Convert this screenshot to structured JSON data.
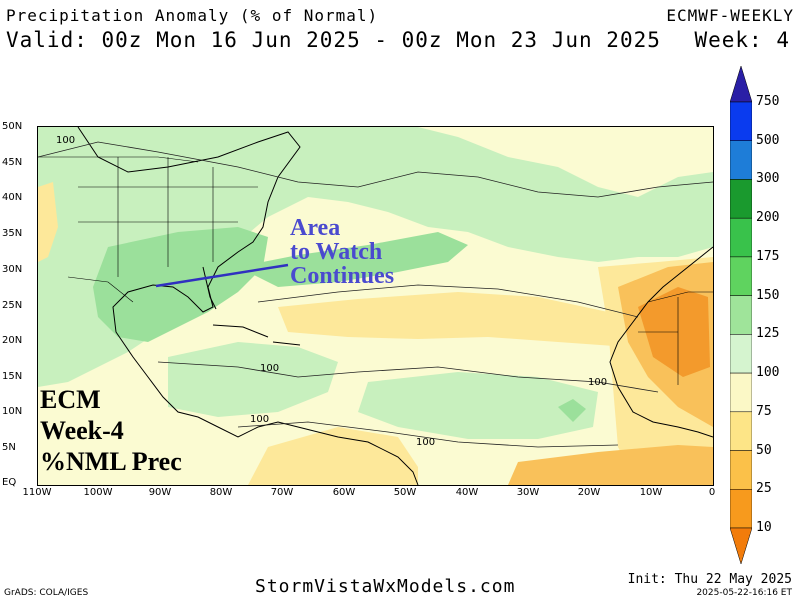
{
  "header": {
    "title": "Precipitation Anomaly (% of Normal)",
    "valid": "Valid: 00z Mon 16 Jun 2025 - 00z Mon 23 Jun 2025",
    "model": "ECMWF-WEEKLY",
    "week": "Week: 4"
  },
  "map": {
    "lat_labels": [
      "50N",
      "45N",
      "40N",
      "35N",
      "30N",
      "25N",
      "20N",
      "15N",
      "10N",
      "5N",
      "EQ"
    ],
    "lon_labels": [
      "110W",
      "100W",
      "90W",
      "80W",
      "70W",
      "60W",
      "50W",
      "40W",
      "30W",
      "20W",
      "10W",
      "0"
    ],
    "contour_labels": [
      "100",
      "100",
      "100",
      "100",
      "100"
    ],
    "colors": {
      "ocean_neutral": "#fbfbd2",
      "above_light": "#c8f0be",
      "above": "#9be09b",
      "below_light": "#fde89a",
      "below": "#f9c15a",
      "dry": "#f39a2c",
      "very_dry": "#ee7a12"
    }
  },
  "annotations": {
    "area_line1": "Area",
    "area_line2": "to Watch",
    "area_line3": "Continues",
    "ecm_line1": "ECM",
    "ecm_line2": "Week-4",
    "ecm_line3": "%NML Prec"
  },
  "legend": {
    "labels": [
      "750",
      "500",
      "300",
      "200",
      "175",
      "150",
      "125",
      "100",
      "75",
      "50",
      "25",
      "10"
    ],
    "colors": [
      "#2a1fa6",
      "#0a3bef",
      "#1e7dd8",
      "#1a9a2e",
      "#39c24b",
      "#5fd35f",
      "#9fe49a",
      "#d5f4cf",
      "#fbf8c6",
      "#fde587",
      "#fbc149",
      "#f79a1d",
      "#f27c0b"
    ]
  },
  "footer": {
    "site": "StormVistaWxModels.com",
    "grads": "GrADS: COLA/IGES",
    "init": "Init: Thu 22 May 2025",
    "stamp": "2025-05-22-16:16 ET"
  }
}
